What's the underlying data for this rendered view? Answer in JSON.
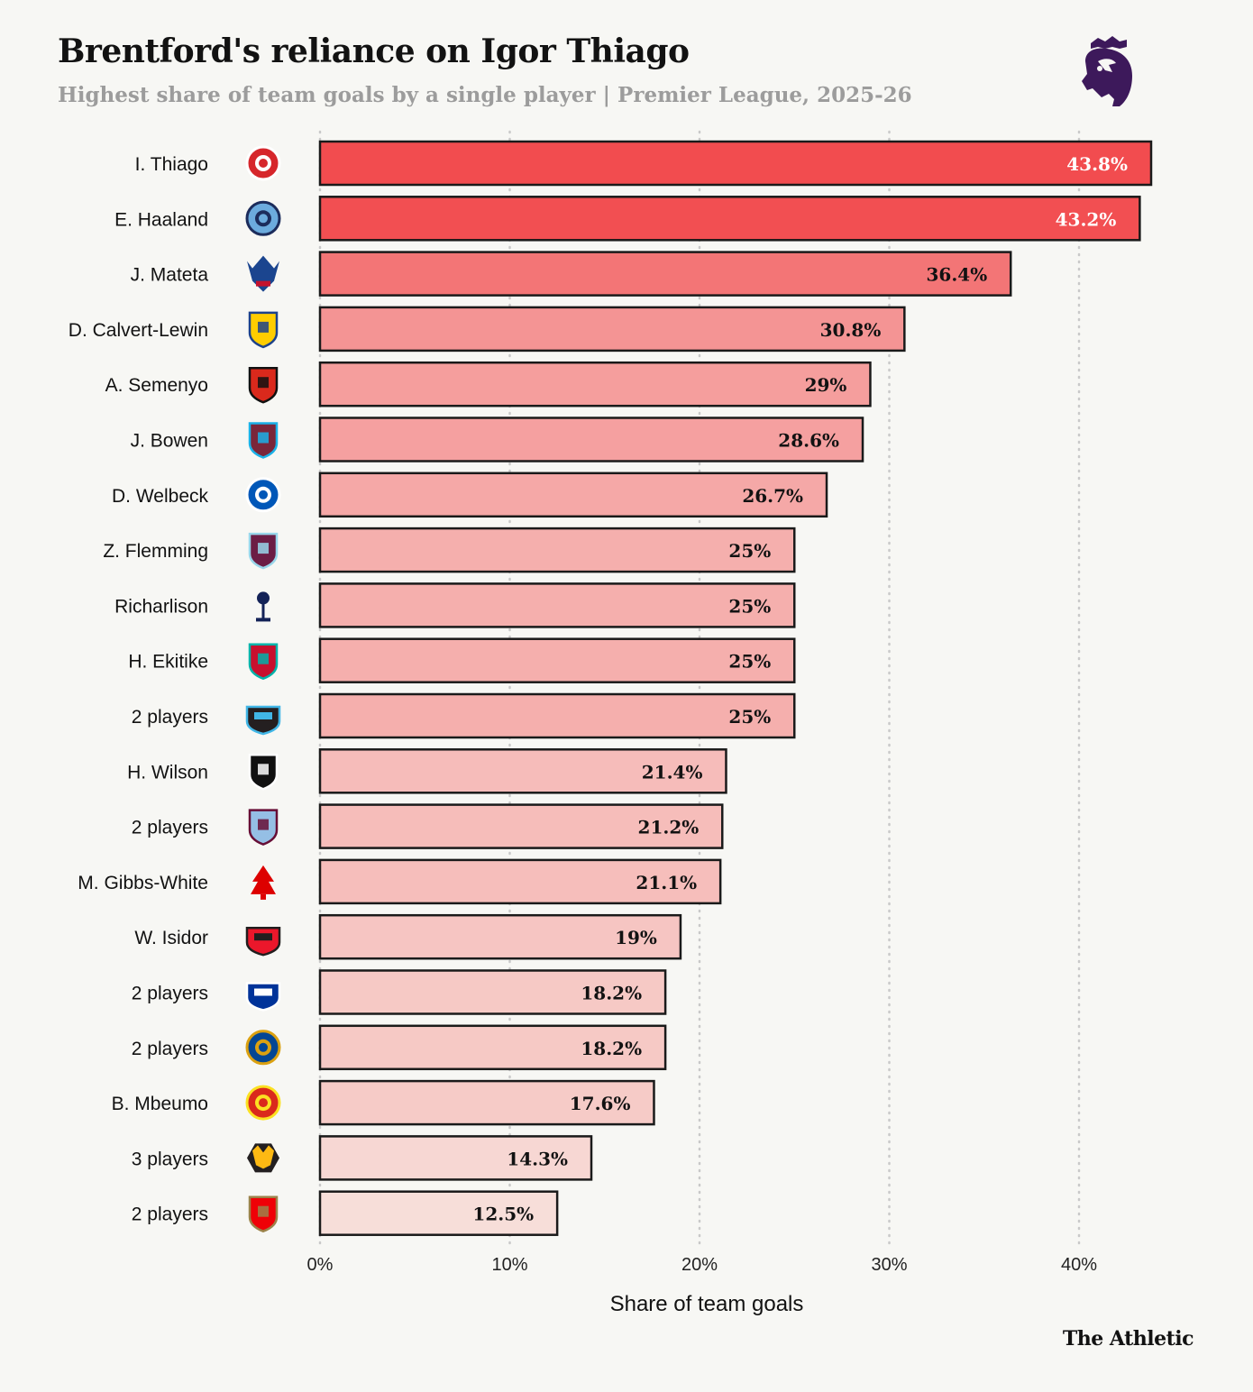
{
  "header": {
    "title": "Brentford's reliance on Igor Thiago",
    "subtitle": "Highest share of team goals by a single player | Premier League, 2025-26",
    "logo_icon": "premier-league-lion-icon",
    "brand": "The Athletic"
  },
  "colors": {
    "background": "#f7f7f4",
    "bar_outline": "#1a1a1a",
    "grid": "#c9c9c9",
    "bar_scale": [
      "#f24c4f",
      "#f5a3a2",
      "#f7ded9"
    ]
  },
  "chart_data": {
    "type": "bar",
    "orientation": "horizontal",
    "title": "Brentford's reliance on Igor Thiago",
    "subtitle": "Highest share of team goals by a single player | Premier League, 2025-26",
    "xlabel": "Share of team goals",
    "ylabel": "",
    "xlim": [
      0,
      45
    ],
    "xticks": [
      0,
      10,
      20,
      30,
      40
    ],
    "xtick_labels": [
      "0%",
      "10%",
      "20%",
      "30%",
      "40%"
    ],
    "grid": "vertical dotted",
    "categories": [
      "I. Thiago",
      "E. Haaland",
      "J. Mateta",
      "D. Calvert-Lewin",
      "A. Semenyo",
      "J. Bowen",
      "D. Welbeck",
      "Z. Flemming",
      "Richarlison",
      "H. Ekitike",
      "2 players",
      "H. Wilson",
      "2 players",
      "M. Gibbs-White",
      "W. Isidor",
      "2 players",
      "2 players",
      "B. Mbeumo",
      "3 players",
      "2 players"
    ],
    "clubs": [
      "brentford",
      "manchester-city",
      "crystal-palace",
      "leeds",
      "bournemouth",
      "west-ham",
      "brighton",
      "burnley",
      "tottenham",
      "liverpool",
      "newcastle",
      "fulham",
      "aston-villa",
      "nottingham-forest",
      "sunderland",
      "everton",
      "chelsea",
      "manchester-united",
      "wolves",
      "arsenal"
    ],
    "values": [
      43.8,
      43.2,
      36.4,
      30.8,
      29,
      28.6,
      26.7,
      25,
      25,
      25,
      25,
      21.4,
      21.2,
      21.1,
      19,
      18.2,
      18.2,
      17.6,
      14.3,
      12.5
    ],
    "value_labels": [
      "43.8%",
      "43.2%",
      "36.4%",
      "30.8%",
      "29%",
      "28.6%",
      "26.7%",
      "25%",
      "25%",
      "25%",
      "25%",
      "21.4%",
      "21.2%",
      "21.1%",
      "19%",
      "18.2%",
      "18.2%",
      "17.6%",
      "14.3%",
      "12.5%"
    ]
  }
}
